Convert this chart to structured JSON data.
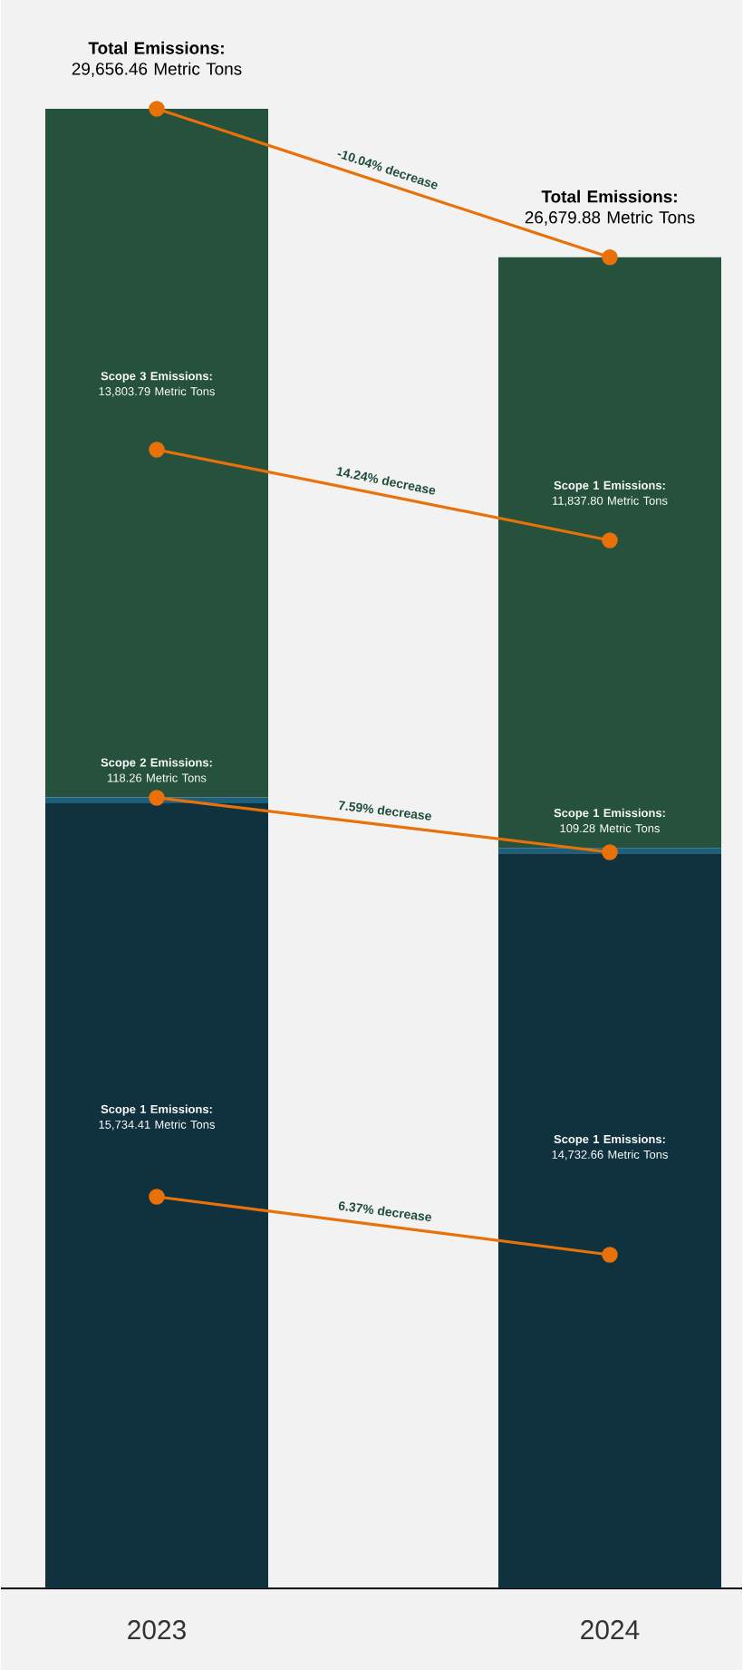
{
  "chart_data": {
    "type": "bar",
    "stacked": true,
    "categories": [
      "2023",
      "2024"
    ],
    "tick_labels": "x",
    "marker": "circle",
    "series": [
      {
        "color": "#10323f",
        "values": [
          15734.41,
          14732.66
        ],
        "value_labels": [
          "**Scope 1 Emissions:** 15,734.41 Metric Tons",
          "**Scope 1 Emissions:** 14,732.66 Metric Tons"
        ]
      },
      {
        "color": "#1c5f7c",
        "values": [
          118.26,
          109.28
        ],
        "value_labels": [
          "**Scope 2 Emissions:** 118.26 Metric Tons",
          "**Scope 1 Emissions:** 109.28 Metric Tons"
        ]
      },
      {
        "color": "#26513d",
        "values": [
          13803.79,
          11837.8
        ],
        "value_labels": [
          "**Scope 3 Emissions:** 13,803.79 Metric Tons",
          "**Scope 1 Emissions:** 11,837.80 Metric Tons"
        ]
      },
      {
        "type": "line",
        "color": "#e8710a",
        "values": [
          29656.46,
          26679.88
        ]
      },
      {
        "type": "line",
        "color": "#e8710a",
        "values": [
          22823,
          21006
        ]
      },
      {
        "type": "line",
        "color": "#e8710a",
        "values": [
          15846,
          14755
        ]
      },
      {
        "type": "line",
        "color": "#e8710a",
        "values": [
          7850,
          6687
        ]
      }
    ],
    "annotations": [
      "**Total Emissions:** 29,656.46 Metric Tons",
      "**Total Emissions:** 26,679.88 Metric Tons",
      "-10.04% decrease",
      "14.24% decrease",
      "7.59% decrease",
      "6.37% decrease"
    ]
  }
}
